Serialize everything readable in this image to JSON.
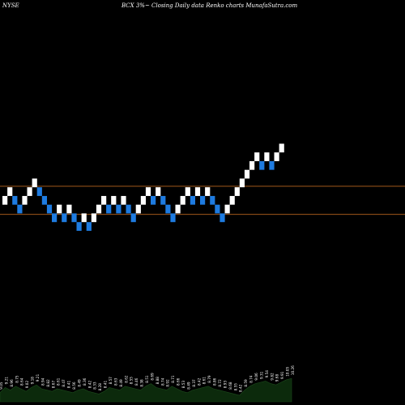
{
  "header": {
    "exchange": "NYSE",
    "title": "BCX 3%~ Closing Daily data Renko charts MunafaSutra.com"
  },
  "colors": {
    "background": "#000000",
    "up_brick": "#ffffff",
    "down_brick": "#1e7be0",
    "reference_line": "#b8641e",
    "volume_fill": "#0c2a0c",
    "volume_label": "#ffffff"
  },
  "chart_data": {
    "type": "renko",
    "brick_size_label": "3%",
    "reference_lines": [
      9.08,
      8.24
    ],
    "y_range": [
      2.55,
      14.64
    ],
    "bricks": [
      {
        "value": 8.66,
        "dir": "up"
      },
      {
        "value": 8.92,
        "dir": "up"
      },
      {
        "value": 8.66,
        "dir": "down"
      },
      {
        "value": 8.4,
        "dir": "down"
      },
      {
        "value": 8.66,
        "dir": "up"
      },
      {
        "value": 8.92,
        "dir": "up"
      },
      {
        "value": 9.18,
        "dir": "up"
      },
      {
        "value": 8.92,
        "dir": "down"
      },
      {
        "value": 8.66,
        "dir": "down"
      },
      {
        "value": 8.4,
        "dir": "down"
      },
      {
        "value": 8.14,
        "dir": "down"
      },
      {
        "value": 8.4,
        "dir": "up"
      },
      {
        "value": 8.14,
        "dir": "down"
      },
      {
        "value": 8.4,
        "dir": "up"
      },
      {
        "value": 8.14,
        "dir": "down"
      },
      {
        "value": 7.88,
        "dir": "down"
      },
      {
        "value": 8.14,
        "dir": "up"
      },
      {
        "value": 7.88,
        "dir": "down"
      },
      {
        "value": 8.14,
        "dir": "up"
      },
      {
        "value": 8.4,
        "dir": "up"
      },
      {
        "value": 8.66,
        "dir": "up"
      },
      {
        "value": 8.4,
        "dir": "down"
      },
      {
        "value": 8.66,
        "dir": "up"
      },
      {
        "value": 8.4,
        "dir": "down"
      },
      {
        "value": 8.66,
        "dir": "up"
      },
      {
        "value": 8.4,
        "dir": "down"
      },
      {
        "value": 8.14,
        "dir": "down"
      },
      {
        "value": 8.4,
        "dir": "up"
      },
      {
        "value": 8.66,
        "dir": "up"
      },
      {
        "value": 8.92,
        "dir": "up"
      },
      {
        "value": 8.66,
        "dir": "down"
      },
      {
        "value": 8.92,
        "dir": "up"
      },
      {
        "value": 8.66,
        "dir": "down"
      },
      {
        "value": 8.4,
        "dir": "down"
      },
      {
        "value": 8.14,
        "dir": "down"
      },
      {
        "value": 8.4,
        "dir": "up"
      },
      {
        "value": 8.66,
        "dir": "up"
      },
      {
        "value": 8.92,
        "dir": "up"
      },
      {
        "value": 8.66,
        "dir": "down"
      },
      {
        "value": 8.92,
        "dir": "up"
      },
      {
        "value": 8.66,
        "dir": "down"
      },
      {
        "value": 8.92,
        "dir": "up"
      },
      {
        "value": 8.66,
        "dir": "down"
      },
      {
        "value": 8.4,
        "dir": "down"
      },
      {
        "value": 8.14,
        "dir": "down"
      },
      {
        "value": 8.4,
        "dir": "up"
      },
      {
        "value": 8.66,
        "dir": "up"
      },
      {
        "value": 8.92,
        "dir": "up"
      },
      {
        "value": 9.18,
        "dir": "up"
      },
      {
        "value": 9.44,
        "dir": "up"
      },
      {
        "value": 9.7,
        "dir": "up"
      },
      {
        "value": 9.96,
        "dir": "up"
      },
      {
        "value": 9.7,
        "dir": "down"
      },
      {
        "value": 9.96,
        "dir": "up"
      },
      {
        "value": 9.7,
        "dir": "down"
      },
      {
        "value": 9.96,
        "dir": "up"
      },
      {
        "value": 10.22,
        "dir": "up"
      }
    ],
    "volume_profile": [
      0.35,
      0.55,
      0.45,
      0.6,
      0.5,
      0.4,
      0.55,
      0.65,
      0.5,
      0.45,
      0.4,
      0.5,
      0.45,
      0.4,
      0.35,
      0.45,
      0.5,
      0.4,
      0.35,
      0.3,
      0.4,
      0.55,
      0.5,
      0.45,
      0.6,
      0.55,
      0.5,
      0.45,
      0.6,
      0.7,
      0.55,
      0.5,
      0.45,
      0.6,
      0.5,
      0.4,
      0.35,
      0.45,
      0.5,
      0.55,
      0.6,
      0.5,
      0.45,
      0.4,
      0.35,
      0.3,
      0.25,
      0.45,
      0.6,
      0.7,
      0.75,
      0.8,
      0.7,
      0.65,
      0.75,
      0.85,
      0.9
    ],
    "volume_labels": [
      "9.05",
      "9.21",
      "8.96",
      "8.75",
      "8.64",
      "9.02",
      "9.18",
      "9.21",
      "8.94",
      "8.82",
      "8.67",
      "8.61",
      "8.47",
      "8.41",
      "8.56",
      "8.49",
      "8.36",
      "8.42",
      "8.33",
      "8.28",
      "8.41",
      "8.57",
      "8.63",
      "8.49",
      "8.62",
      "8.55",
      "8.46",
      "8.38",
      "8.51",
      "8.69",
      "8.88",
      "8.74",
      "8.92",
      "8.71",
      "8.66",
      "8.53",
      "8.49",
      "8.37",
      "8.42",
      "8.61",
      "8.79",
      "8.86",
      "8.72",
      "8.93",
      "8.68",
      "8.55",
      "8.42",
      "8.59",
      "8.74",
      "9.06",
      "9.31",
      "9.54",
      "9.82",
      "9.68",
      "9.91",
      "10.05",
      "10.26"
    ]
  }
}
